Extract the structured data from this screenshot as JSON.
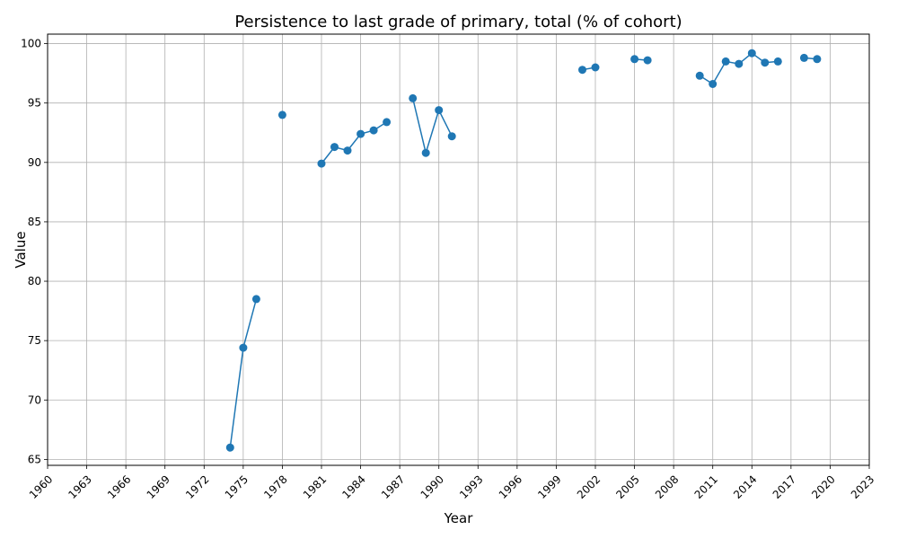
{
  "chart_data": {
    "type": "line",
    "title": "Persistence to last grade of primary, total (% of cohort)",
    "xlabel": "Year",
    "ylabel": "Value",
    "xlim": [
      1960,
      2023
    ],
    "ylim": [
      64.5,
      100.8
    ],
    "x_ticks": [
      1960,
      1963,
      1966,
      1969,
      1972,
      1975,
      1978,
      1981,
      1984,
      1987,
      1990,
      1993,
      1996,
      1999,
      2002,
      2005,
      2008,
      2011,
      2014,
      2017,
      2020,
      2023
    ],
    "y_ticks": [
      65,
      70,
      75,
      80,
      85,
      90,
      95,
      100
    ],
    "grid": true,
    "series": [
      {
        "color": "#1f77b4",
        "segments": [
          [
            [
              1974,
              66.0
            ],
            [
              1975,
              74.4
            ],
            [
              1976,
              78.5
            ]
          ],
          [
            [
              1978,
              94.0
            ]
          ],
          [
            [
              1981,
              89.9
            ],
            [
              1982,
              91.3
            ],
            [
              1983,
              91.0
            ],
            [
              1984,
              92.4
            ],
            [
              1985,
              92.7
            ],
            [
              1986,
              93.4
            ]
          ],
          [
            [
              1988,
              95.4
            ],
            [
              1989,
              90.8
            ],
            [
              1990,
              94.4
            ],
            [
              1991,
              92.2
            ]
          ],
          [
            [
              2001,
              97.8
            ],
            [
              2002,
              98.0
            ]
          ],
          [
            [
              2005,
              98.7
            ],
            [
              2006,
              98.6
            ]
          ],
          [
            [
              2010,
              97.3
            ],
            [
              2011,
              96.6
            ],
            [
              2012,
              98.5
            ],
            [
              2013,
              98.3
            ],
            [
              2014,
              99.2
            ],
            [
              2015,
              98.4
            ],
            [
              2016,
              98.5
            ]
          ],
          [
            [
              2018,
              98.8
            ],
            [
              2019,
              98.7
            ]
          ]
        ]
      }
    ]
  }
}
